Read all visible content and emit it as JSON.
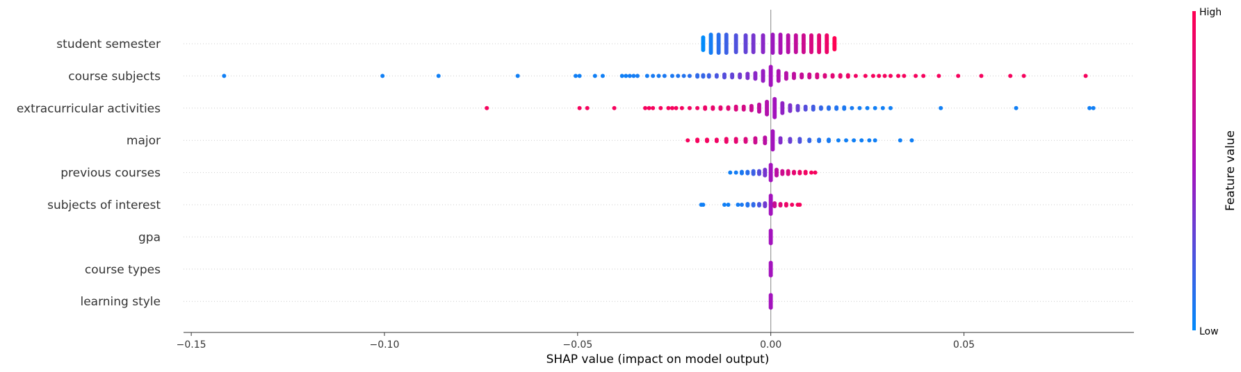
{
  "chart_data": {
    "type": "scatter",
    "subtype": "shap-beeswarm",
    "title": "",
    "xlabel": "SHAP value (impact on model output)",
    "xlim": [
      -0.152,
      0.094
    ],
    "x_ticks": [
      -0.15,
      -0.1,
      -0.05,
      0.0,
      0.05
    ],
    "x_tick_labels": [
      "−0.15",
      "−0.10",
      "−0.05",
      "0.00",
      "0.05"
    ],
    "grid": "row-guides",
    "colorbar": {
      "label": "Feature value",
      "high_label": "High",
      "low_label": "Low",
      "low_color": "#008bfb",
      "mid_color": "#a313bd",
      "high_color": "#ff0052"
    },
    "features": [
      {
        "name": "student semester",
        "x": [
          -0.0175,
          -0.0155,
          -0.0135,
          -0.0115,
          -0.009,
          -0.0065,
          -0.0045,
          -0.002,
          0.0005,
          0.0025,
          0.0045,
          0.0065,
          0.0085,
          0.0105,
          0.0125,
          0.0145,
          0.0165
        ],
        "values": [
          0.0,
          0.06,
          0.12,
          0.18,
          0.24,
          0.3,
          0.36,
          0.42,
          0.48,
          0.54,
          0.6,
          0.66,
          0.72,
          0.78,
          0.84,
          0.9,
          1.0
        ],
        "stack": [
          10,
          14,
          14,
          14,
          13,
          13,
          13,
          13,
          14,
          14,
          13,
          13,
          13,
          13,
          13,
          13,
          9
        ]
      },
      {
        "name": "course subjects",
        "x": [
          -0.1415,
          -0.1005,
          -0.086,
          -0.0655,
          -0.0505,
          -0.0495,
          -0.0455,
          -0.0435,
          -0.0385,
          -0.0375,
          -0.0365,
          -0.0355,
          -0.0345,
          -0.032,
          -0.0305,
          -0.029,
          -0.0275,
          -0.0255,
          -0.024,
          -0.0225,
          -0.021,
          -0.019,
          -0.0175,
          -0.016,
          -0.014,
          -0.012,
          -0.01,
          -0.008,
          -0.006,
          -0.004,
          -0.002,
          0.0,
          0.002,
          0.004,
          0.006,
          0.008,
          0.01,
          0.012,
          0.014,
          0.016,
          0.018,
          0.02,
          0.022,
          0.0245,
          0.0265,
          0.028,
          0.0295,
          0.031,
          0.033,
          0.0345,
          0.0375,
          0.0395,
          0.0435,
          0.0485,
          0.0545,
          0.062,
          0.0655,
          0.0815
        ],
        "values": [
          0.05,
          0.05,
          0.05,
          0.05,
          0.05,
          0.05,
          0.05,
          0.05,
          0.05,
          0.05,
          0.06,
          0.06,
          0.06,
          0.06,
          0.07,
          0.07,
          0.08,
          0.08,
          0.09,
          0.1,
          0.12,
          0.14,
          0.16,
          0.18,
          0.22,
          0.26,
          0.3,
          0.34,
          0.38,
          0.42,
          0.46,
          0.5,
          0.55,
          0.6,
          0.64,
          0.68,
          0.72,
          0.76,
          0.8,
          0.84,
          0.88,
          0.9,
          0.92,
          0.95,
          0.95,
          0.95,
          0.95,
          0.95,
          0.95,
          0.95,
          0.95,
          0.95,
          0.95,
          0.95,
          0.95,
          0.95,
          0.95,
          0.95
        ],
        "stack": [
          1,
          1,
          1,
          1,
          1,
          1,
          1,
          1,
          1,
          1,
          1,
          1,
          1,
          1,
          1,
          1,
          1,
          1,
          1,
          1,
          1,
          2,
          2,
          2,
          2,
          3,
          3,
          3,
          4,
          5,
          8,
          14,
          8,
          5,
          4,
          3,
          3,
          3,
          2,
          2,
          2,
          2,
          1,
          1,
          1,
          1,
          1,
          1,
          1,
          1,
          1,
          1,
          1,
          1,
          1,
          1,
          1,
          1
        ]
      },
      {
        "name": "extracurricular activities",
        "x": [
          -0.0735,
          -0.0495,
          -0.0475,
          -0.0405,
          -0.0325,
          -0.0315,
          -0.0305,
          -0.0285,
          -0.0265,
          -0.0255,
          -0.0245,
          -0.023,
          -0.021,
          -0.019,
          -0.017,
          -0.015,
          -0.013,
          -0.011,
          -0.009,
          -0.007,
          -0.005,
          -0.003,
          -0.001,
          0.001,
          0.003,
          0.005,
          0.007,
          0.009,
          0.011,
          0.013,
          0.015,
          0.017,
          0.019,
          0.021,
          0.023,
          0.025,
          0.027,
          0.029,
          0.031,
          0.044,
          0.0635,
          0.0825,
          0.0835
        ],
        "values": [
          0.95,
          0.95,
          0.95,
          0.95,
          0.95,
          0.95,
          0.95,
          0.95,
          0.95,
          0.95,
          0.95,
          0.94,
          0.93,
          0.92,
          0.9,
          0.88,
          0.86,
          0.84,
          0.8,
          0.76,
          0.7,
          0.64,
          0.58,
          0.5,
          0.44,
          0.38,
          0.32,
          0.26,
          0.2,
          0.16,
          0.12,
          0.1,
          0.08,
          0.07,
          0.06,
          0.05,
          0.05,
          0.05,
          0.05,
          0.05,
          0.05,
          0.05,
          0.05
        ],
        "stack": [
          1,
          1,
          1,
          1,
          1,
          1,
          1,
          1,
          1,
          1,
          1,
          1,
          1,
          1,
          2,
          2,
          2,
          2,
          3,
          3,
          4,
          6,
          10,
          14,
          8,
          5,
          4,
          3,
          3,
          2,
          2,
          2,
          2,
          1,
          1,
          1,
          1,
          1,
          1,
          1,
          1,
          1,
          1
        ]
      },
      {
        "name": "major",
        "x": [
          -0.0215,
          -0.019,
          -0.0165,
          -0.014,
          -0.0115,
          -0.009,
          -0.0065,
          -0.004,
          -0.0015,
          0.0005,
          0.0025,
          0.005,
          0.0075,
          0.01,
          0.0125,
          0.015,
          0.0175,
          0.0195,
          0.0215,
          0.0235,
          0.0255,
          0.027,
          0.0335,
          0.0365
        ],
        "values": [
          0.95,
          0.95,
          0.94,
          0.92,
          0.9,
          0.86,
          0.8,
          0.72,
          0.62,
          0.5,
          0.4,
          0.32,
          0.24,
          0.16,
          0.1,
          0.07,
          0.05,
          0.05,
          0.05,
          0.05,
          0.05,
          0.05,
          0.05,
          0.05
        ],
        "stack": [
          1,
          2,
          2,
          2,
          3,
          3,
          3,
          4,
          5,
          14,
          4,
          3,
          3,
          2,
          2,
          2,
          1,
          1,
          1,
          1,
          1,
          1,
          1,
          1
        ]
      },
      {
        "name": "previous courses",
        "x": [
          -0.0105,
          -0.009,
          -0.0075,
          -0.006,
          -0.0045,
          -0.003,
          -0.0015,
          0.0,
          0.0015,
          0.003,
          0.0045,
          0.006,
          0.0075,
          0.009,
          0.0105,
          0.0115
        ],
        "values": [
          0.05,
          0.06,
          0.08,
          0.12,
          0.18,
          0.26,
          0.36,
          0.5,
          0.62,
          0.72,
          0.8,
          0.86,
          0.9,
          0.93,
          0.95,
          0.95
        ],
        "stack": [
          1,
          1,
          2,
          2,
          3,
          3,
          5,
          12,
          5,
          3,
          3,
          2,
          2,
          2,
          1,
          1
        ],
        "x_clusters_note": ""
      },
      {
        "name": "subjects of interest",
        "x": [
          -0.018,
          -0.0175,
          -0.012,
          -0.011,
          -0.0085,
          -0.0075,
          -0.006,
          -0.0045,
          -0.003,
          -0.0015,
          0.0,
          0.001,
          0.0025,
          0.004,
          0.0055,
          0.007,
          0.0075
        ],
        "values": [
          0.05,
          0.05,
          0.05,
          0.05,
          0.06,
          0.08,
          0.1,
          0.14,
          0.22,
          0.34,
          0.5,
          0.7,
          0.84,
          0.9,
          0.93,
          0.95,
          0.95
        ],
        "stack": [
          1,
          1,
          1,
          1,
          1,
          1,
          2,
          2,
          2,
          3,
          14,
          3,
          2,
          2,
          1,
          1,
          1
        ]
      },
      {
        "name": "gpa",
        "x": [
          0.0
        ],
        "values": [
          0.5
        ],
        "stack": [
          10
        ]
      },
      {
        "name": "course types",
        "x": [
          0.0
        ],
        "values": [
          0.5
        ],
        "stack": [
          10
        ]
      },
      {
        "name": "learning style",
        "x": [
          0.0
        ],
        "values": [
          0.5
        ],
        "stack": [
          10
        ]
      }
    ]
  }
}
